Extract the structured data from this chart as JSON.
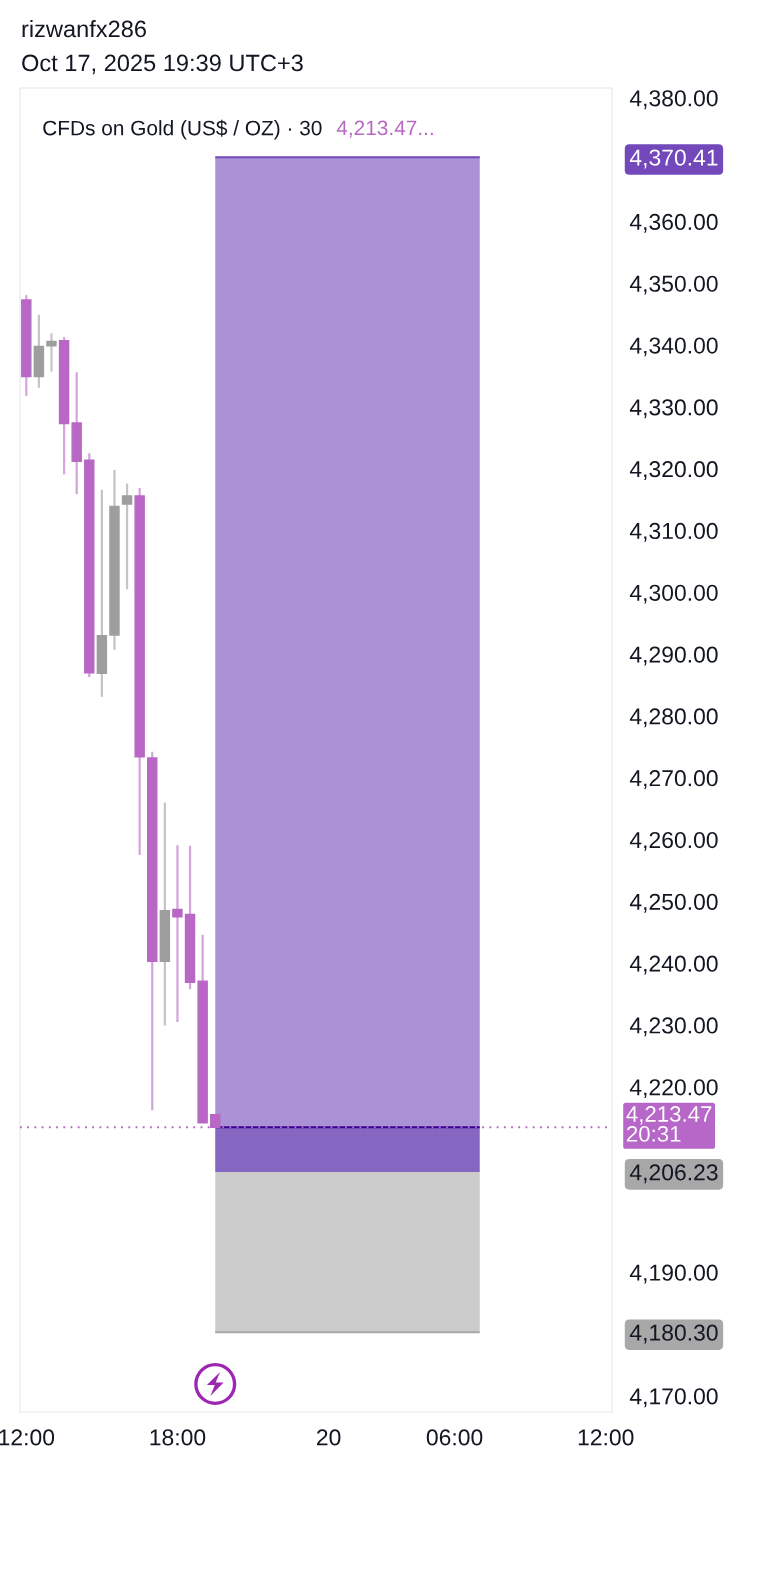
{
  "chart_data": {
    "type": "candlestick",
    "title": "CFDs on Gold (US$ / OZ) · 30",
    "subtitle": "4,213.47...",
    "categories": [
      "12:00",
      null,
      null,
      null,
      null,
      null,
      null,
      null,
      null,
      null,
      null,
      null,
      "18:00",
      null,
      null,
      null,
      null,
      null,
      null,
      null,
      null,
      null,
      null,
      null,
      "20",
      null,
      null,
      null,
      null,
      null,
      null,
      null,
      null,
      null,
      "06:00",
      null,
      null,
      null,
      null,
      null,
      null,
      null,
      null,
      null,
      null,
      null,
      "12:00"
    ],
    "ohlc": [
      [
        4347.3,
        4348.1,
        4331.8,
        4334.9
      ],
      [
        4334.9,
        4344.9,
        4333.1,
        4339.8
      ],
      [
        4339.9,
        4341.9,
        4335.7,
        4340.6
      ],
      [
        4340.7,
        4341.3,
        4319.1,
        4327.3
      ],
      [
        4327.4,
        4335.6,
        4315.9,
        4321.2
      ],
      [
        4321.4,
        4322.5,
        4286.3,
        4287.0
      ],
      [
        4286.9,
        4316.6,
        4283.1,
        4293.0
      ],
      [
        4293.1,
        4319.8,
        4290.7,
        4313.9
      ],
      [
        4314.3,
        4317.6,
        4300.5,
        4315.6
      ],
      [
        4315.6,
        4316.9,
        4257.5,
        4273.4
      ],
      [
        4273.2,
        4274.2,
        4216.2,
        4240.3
      ],
      [
        4240.3,
        4266.0,
        4229.9,
        4248.5
      ],
      [
        4248.7,
        4259.1,
        4230.5,
        4247.5
      ],
      [
        4247.9,
        4259.0,
        4235.8,
        4236.9
      ],
      [
        4237.1,
        4244.6,
        4214.2,
        4214.2
      ],
      [
        4215.5,
        4215.5,
        4213.47,
        4213.47
      ],
      null,
      null,
      null,
      null,
      null,
      null,
      null,
      null,
      null,
      null,
      null,
      null,
      null,
      null,
      null,
      null,
      null,
      null,
      null,
      null,
      null,
      null,
      null,
      null,
      null,
      null,
      null,
      null,
      null,
      null,
      null
    ],
    "colors": [
      "#b868c4",
      "#9e9e9e",
      "#9e9e9e",
      "#b868c4",
      "#b868c4",
      "#b868c4",
      "#9e9e9e",
      "#9e9e9e",
      "#9e9e9e",
      "#b868c4",
      "#b868c4",
      "#9e9e9e",
      "#b868c4",
      "#b868c4",
      "#b868c4",
      "#b868c4",
      null,
      null,
      null,
      null,
      null,
      null,
      null,
      null,
      null,
      null,
      null,
      null,
      null,
      null,
      null,
      null,
      null,
      null,
      null,
      null,
      null,
      null,
      null,
      null,
      null,
      null,
      null,
      null,
      null,
      null,
      null
    ],
    "series": [
      {
        "type": "line",
        "color": "#7348bb",
        "values": [
          null,
          null,
          null,
          null,
          null,
          null,
          null,
          null,
          null,
          null,
          null,
          null,
          null,
          null,
          null,
          4370.41,
          4370.41,
          4370.41,
          4370.41,
          4370.41,
          4370.41,
          4370.41,
          4370.41,
          4370.41,
          4370.41,
          4370.41,
          4370.41,
          4370.41,
          4370.41,
          4370.41,
          4370.41,
          4370.41,
          4370.41,
          4370.41,
          4370.41,
          4370.41,
          4370.41,
          null,
          null,
          null,
          null,
          null,
          null,
          null,
          null,
          null,
          null
        ],
        "lower": [
          null,
          null,
          null,
          null,
          null,
          null,
          null,
          null,
          null,
          null,
          null,
          null,
          null,
          null,
          null,
          4213.47,
          4213.47,
          4213.47,
          4213.47,
          4213.47,
          4213.47,
          4213.47,
          4213.47,
          4213.47,
          4213.47,
          4213.47,
          4213.47,
          4213.47,
          4213.47,
          4213.47,
          4213.47,
          4213.47,
          4213.47,
          4213.47,
          4213.47,
          4213.47,
          4213.47,
          null,
          null,
          null,
          null,
          null,
          null,
          null,
          null,
          null,
          null
        ],
        "upper": [
          null,
          null,
          null,
          null,
          null,
          null,
          null,
          null,
          null,
          null,
          null,
          null,
          null,
          null,
          null,
          4370.41,
          4370.41,
          4370.41,
          4370.41,
          4370.41,
          4370.41,
          4370.41,
          4370.41,
          4370.41,
          4370.41,
          4370.41,
          4370.41,
          4370.41,
          4370.41,
          4370.41,
          4370.41,
          4370.41,
          4370.41,
          4370.41,
          4370.41,
          4370.41,
          4370.41,
          null,
          null,
          null,
          null,
          null,
          null,
          null,
          null,
          null,
          null
        ]
      },
      {
        "type": "line",
        "color": "#340096",
        "values": [
          null,
          null,
          null,
          null,
          null,
          null,
          null,
          null,
          null,
          null,
          null,
          null,
          null,
          null,
          null,
          4213.47,
          4213.47,
          4213.47,
          4213.47,
          4213.47,
          4213.47,
          4213.47,
          4213.47,
          4213.47,
          4213.47,
          4213.47,
          4213.47,
          4213.47,
          4213.47,
          4213.47,
          4213.47,
          4213.47,
          4213.47,
          4213.47,
          4213.47,
          4213.47,
          4213.47,
          null,
          null,
          null,
          null,
          null,
          null,
          null,
          null,
          null,
          null
        ],
        "lower": [
          null,
          null,
          null,
          null,
          null,
          null,
          null,
          null,
          null,
          null,
          null,
          null,
          null,
          null,
          null,
          4206.23,
          4206.23,
          4206.23,
          4206.23,
          4206.23,
          4206.23,
          4206.23,
          4206.23,
          4206.23,
          4206.23,
          4206.23,
          4206.23,
          4206.23,
          4206.23,
          4206.23,
          4206.23,
          4206.23,
          4206.23,
          4206.23,
          4206.23,
          4206.23,
          4206.23,
          null,
          null,
          null,
          null,
          null,
          null,
          null,
          null,
          null,
          null
        ],
        "upper": [
          null,
          null,
          null,
          null,
          null,
          null,
          null,
          null,
          null,
          null,
          null,
          null,
          null,
          null,
          null,
          4213.47,
          4213.47,
          4213.47,
          4213.47,
          4213.47,
          4213.47,
          4213.47,
          4213.47,
          4213.47,
          4213.47,
          4213.47,
          4213.47,
          4213.47,
          4213.47,
          4213.47,
          4213.47,
          4213.47,
          4213.47,
          4213.47,
          4213.47,
          4213.47,
          4213.47,
          null,
          null,
          null,
          null,
          null,
          null,
          null,
          null,
          null,
          null
        ]
      },
      {
        "type": "line",
        "color": "#a8a8a8",
        "values": [
          null,
          null,
          null,
          null,
          null,
          null,
          null,
          null,
          null,
          null,
          null,
          null,
          null,
          null,
          null,
          4180.3,
          4180.3,
          4180.3,
          4180.3,
          4180.3,
          4180.3,
          4180.3,
          4180.3,
          4180.3,
          4180.3,
          4180.3,
          4180.3,
          4180.3,
          4180.3,
          4180.3,
          4180.3,
          4180.3,
          4180.3,
          4180.3,
          4180.3,
          4180.3,
          4180.3,
          null,
          null,
          null,
          null,
          null,
          null,
          null,
          null,
          null,
          null
        ],
        "lower": [
          null,
          null,
          null,
          null,
          null,
          null,
          null,
          null,
          null,
          null,
          null,
          null,
          null,
          null,
          null,
          4180.3,
          4180.3,
          4180.3,
          4180.3,
          4180.3,
          4180.3,
          4180.3,
          4180.3,
          4180.3,
          4180.3,
          4180.3,
          4180.3,
          4180.3,
          4180.3,
          4180.3,
          4180.3,
          4180.3,
          4180.3,
          4180.3,
          4180.3,
          4180.3,
          4180.3,
          null,
          null,
          null,
          null,
          null,
          null,
          null,
          null,
          null,
          null
        ],
        "upper": [
          null,
          null,
          null,
          null,
          null,
          null,
          null,
          null,
          null,
          null,
          null,
          null,
          null,
          null,
          null,
          4206.23,
          4206.23,
          4206.23,
          4206.23,
          4206.23,
          4206.23,
          4206.23,
          4206.23,
          4206.23,
          4206.23,
          4206.23,
          4206.23,
          4206.23,
          4206.23,
          4206.23,
          4206.23,
          4206.23,
          4206.23,
          4206.23,
          4206.23,
          4206.23,
          4206.23,
          null,
          null,
          null,
          null,
          null,
          null,
          null,
          null,
          null,
          null
        ]
      }
    ],
    "ylim": [
      4167.4,
      4381.6
    ],
    "yticks": [
      {
        "value": 4170,
        "label": "4,170.00"
      },
      {
        "value": 4180.3,
        "label": "4,180.30"
      },
      {
        "value": 4190,
        "label": "4,190.00"
      },
      {
        "value": 4206.23,
        "label": "4,206.23"
      },
      {
        "value": 4220,
        "label": "4,220.00"
      },
      {
        "value": 4230,
        "label": "4,230.00"
      },
      {
        "value": 4240,
        "label": "4,240.00"
      },
      {
        "value": 4250,
        "label": "4,250.00"
      },
      {
        "value": 4260,
        "label": "4,260.00"
      },
      {
        "value": 4270,
        "label": "4,270.00"
      },
      {
        "value": 4280,
        "label": "4,280.00"
      },
      {
        "value": 4290,
        "label": "4,290.00"
      },
      {
        "value": 4300,
        "label": "4,300.00"
      },
      {
        "value": 4310,
        "label": "4,310.00"
      },
      {
        "value": 4320,
        "label": "4,320.00"
      },
      {
        "value": 4330,
        "label": "4,330.00"
      },
      {
        "value": 4340,
        "label": "4,340.00"
      },
      {
        "value": 4350,
        "label": "4,350.00"
      },
      {
        "value": 4360,
        "label": "4,360.00"
      },
      {
        "value": 4370.41,
        "label": "4,370.41"
      },
      {
        "value": 4380,
        "label": "4,380.00"
      }
    ],
    "ref_lines": [
      {
        "axis": "y",
        "value": 4213.47,
        "label": "4,213.47\n20:31",
        "color": "#b667c8",
        "line_style": "dotted"
      }
    ],
    "annotations": [
      "rizwanfx286",
      "Oct 17, 2025 19:39 UTC+3"
    ],
    "grid": false,
    "legend": false
  }
}
